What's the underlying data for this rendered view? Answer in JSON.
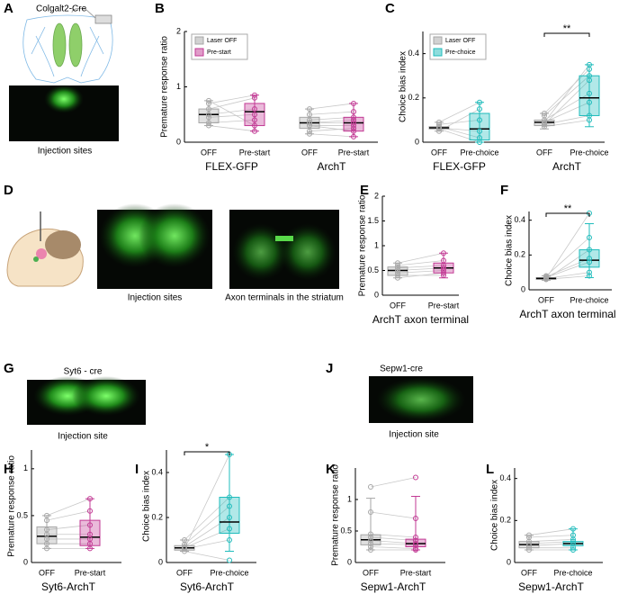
{
  "figure": {
    "panels": [
      "A",
      "B",
      "C",
      "D",
      "E",
      "F",
      "G",
      "H",
      "I",
      "J",
      "K",
      "L"
    ],
    "labels": [
      "Colgalt2-Cre",
      "Injection sites",
      "Injection sites",
      "Axon terminals in the striatum",
      "Syt6 - cre",
      "Injection site",
      "Sepw1-cre",
      "Injection site"
    ]
  },
  "chart_data": [
    {
      "type": "box",
      "ylabel": "Premature response ratio",
      "ylim": [
        0,
        2
      ],
      "yticks": [
        0,
        1,
        2
      ],
      "groups": [
        "FLEX-GFP",
        "ArchT"
      ],
      "categories": [
        "OFF",
        "Pre-start",
        "OFF",
        "Pre-start"
      ],
      "series": [
        {
          "name": "Laser OFF",
          "color": "#a6a6a6",
          "boxes": [
            {
              "min": 0.3,
              "q1": 0.35,
              "median": 0.5,
              "q3": 0.6,
              "max": 0.75,
              "points": [
                0.35,
                0.45,
                0.5,
                0.6,
                0.7,
                0.75,
                0.3
              ]
            },
            {
              "min": 0.15,
              "q1": 0.25,
              "median": 0.35,
              "q3": 0.45,
              "max": 0.6,
              "points": [
                0.2,
                0.3,
                0.35,
                0.4,
                0.5,
                0.6,
                0.15,
                0.35,
                0.3
              ]
            }
          ]
        },
        {
          "name": "Pre-start",
          "color": "#c23a94",
          "boxes": [
            {
              "min": 0.2,
              "q1": 0.3,
              "median": 0.55,
              "q3": 0.7,
              "max": 0.85,
              "points": [
                0.4,
                0.5,
                0.6,
                0.8,
                0.85,
                0.3,
                0.2
              ]
            },
            {
              "min": 0.1,
              "q1": 0.2,
              "median": 0.35,
              "q3": 0.45,
              "max": 0.7,
              "points": [
                0.25,
                0.3,
                0.4,
                0.45,
                0.55,
                0.7,
                0.1,
                0.35,
                0.2
              ]
            }
          ]
        }
      ]
    },
    {
      "type": "box",
      "ylabel": "Choice bias index",
      "ylim": [
        0,
        0.5
      ],
      "yticks": [
        0,
        0.2,
        0.4
      ],
      "groups": [
        "FLEX-GFP",
        "ArchT"
      ],
      "categories": [
        "OFF",
        "Pre-choice",
        "OFF",
        "Pre-choice"
      ],
      "significance": "**",
      "series": [
        {
          "name": "Laser OFF",
          "color": "#a6a6a6",
          "boxes": [
            {
              "min": 0.05,
              "q1": 0.06,
              "median": 0.065,
              "q3": 0.07,
              "max": 0.09,
              "points": [
                0.06,
                0.07,
                0.065,
                0.08,
                0.05,
                0.09
              ]
            },
            {
              "min": 0.06,
              "q1": 0.075,
              "median": 0.09,
              "q3": 0.1,
              "max": 0.13,
              "points": [
                0.07,
                0.08,
                0.09,
                0.1,
                0.12,
                0.13,
                0.09,
                0.08
              ]
            }
          ]
        },
        {
          "name": "Pre-choice",
          "color": "#1fbcbc",
          "boxes": [
            {
              "min": 0,
              "q1": 0.01,
              "median": 0.06,
              "q3": 0.13,
              "max": 0.18,
              "points": [
                0,
                0.02,
                0.05,
                0.1,
                0.15,
                0.18
              ]
            },
            {
              "min": 0.07,
              "q1": 0.12,
              "median": 0.2,
              "q3": 0.3,
              "max": 0.35,
              "points": [
                0.1,
                0.12,
                0.18,
                0.22,
                0.3,
                0.33,
                0.35,
                0.28
              ]
            }
          ]
        }
      ]
    },
    {
      "type": "box",
      "ylabel": "Premature response ratio",
      "ylim": [
        0,
        2
      ],
      "yticks": [
        0,
        0.5,
        1,
        1.5,
        2
      ],
      "groups": [
        "ArchT axon terminal"
      ],
      "categories": [
        "OFF",
        "Pre-start"
      ],
      "series": [
        {
          "color": "#a6a6a6",
          "boxes": [
            {
              "min": 0.35,
              "q1": 0.4,
              "median": 0.5,
              "q3": 0.57,
              "max": 0.65,
              "points": [
                0.4,
                0.45,
                0.5,
                0.55,
                0.6,
                0.65,
                0.35
              ]
            }
          ]
        },
        {
          "color": "#c23a94",
          "boxes": [
            {
              "min": 0.35,
              "q1": 0.45,
              "median": 0.55,
              "q3": 0.65,
              "max": 0.85,
              "points": [
                0.4,
                0.5,
                0.55,
                0.6,
                0.7,
                0.85,
                0.45
              ]
            }
          ]
        }
      ]
    },
    {
      "type": "box",
      "ylabel": "Choice bias index",
      "ylim": [
        0,
        0.45
      ],
      "yticks": [
        0,
        0.2,
        0.4
      ],
      "groups": [
        "ArchT axon terminal"
      ],
      "categories": [
        "OFF",
        "Pre-choice"
      ],
      "significance": "**",
      "series": [
        {
          "color": "#a6a6a6",
          "boxes": [
            {
              "min": 0.055,
              "q1": 0.06,
              "median": 0.065,
              "q3": 0.07,
              "max": 0.08,
              "points": [
                0.06,
                0.065,
                0.07,
                0.075,
                0.06,
                0.08,
                0.065
              ]
            }
          ]
        },
        {
          "color": "#1fbcbc",
          "boxes": [
            {
              "min": 0.07,
              "q1": 0.13,
              "median": 0.17,
              "q3": 0.23,
              "max": 0.38,
              "points": [
                0.08,
                0.1,
                0.16,
                0.18,
                0.23,
                0.3,
                0.44
              ]
            }
          ]
        }
      ]
    },
    {
      "type": "box",
      "ylabel": "Premature response ratio",
      "ylim": [
        0,
        1.2
      ],
      "yticks": [
        0,
        0.5,
        1
      ],
      "groups": [
        "Syt6-ArchT"
      ],
      "categories": [
        "OFF",
        "Pre-start"
      ],
      "series": [
        {
          "color": "#a6a6a6",
          "boxes": [
            {
              "min": 0.15,
              "q1": 0.2,
              "median": 0.28,
              "q3": 0.38,
              "max": 0.5,
              "points": [
                0.2,
                0.25,
                0.3,
                0.35,
                0.45,
                0.5,
                0.15
              ]
            }
          ]
        },
        {
          "color": "#c23a94",
          "boxes": [
            {
              "min": 0.15,
              "q1": 0.18,
              "median": 0.27,
              "q3": 0.45,
              "max": 0.68,
              "points": [
                0.2,
                0.25,
                0.3,
                0.4,
                0.55,
                0.68,
                0.15
              ]
            }
          ]
        }
      ]
    },
    {
      "type": "box",
      "ylabel": "Choice bias index",
      "ylim": [
        0,
        0.5
      ],
      "yticks": [
        0,
        0.2,
        0.4
      ],
      "groups": [
        "Syt6-ArchT"
      ],
      "categories": [
        "OFF",
        "Pre-choice"
      ],
      "significance": "*",
      "series": [
        {
          "color": "#a6a6a6",
          "boxes": [
            {
              "min": 0.05,
              "q1": 0.055,
              "median": 0.065,
              "q3": 0.075,
              "max": 0.1,
              "points": [
                0.05,
                0.06,
                0.065,
                0.07,
                0.08,
                0.1,
                0.06
              ]
            }
          ]
        },
        {
          "color": "#1fbcbc",
          "boxes": [
            {
              "min": 0.05,
              "q1": 0.13,
              "median": 0.18,
              "q3": 0.29,
              "max": 0.48,
              "points": [
                0.01,
                0.1,
                0.15,
                0.2,
                0.25,
                0.29,
                0.48
              ]
            }
          ]
        }
      ]
    },
    {
      "type": "box",
      "ylabel": "Premature response ratio",
      "ylim": [
        0,
        1.5
      ],
      "yticks": [
        0,
        0.5,
        1
      ],
      "groups": [
        "Sepw1-ArchT"
      ],
      "categories": [
        "OFF",
        "Pre-start"
      ],
      "series": [
        {
          "color": "#a6a6a6",
          "boxes": [
            {
              "min": 0.2,
              "q1": 0.28,
              "median": 0.36,
              "q3": 0.44,
              "max": 1.02,
              "points": [
                0.2,
                0.25,
                0.3,
                0.35,
                0.4,
                0.45,
                0.8,
                1.2
              ]
            }
          ]
        },
        {
          "color": "#c23a94",
          "boxes": [
            {
              "min": 0.2,
              "q1": 0.25,
              "median": 0.3,
              "q3": 0.37,
              "max": 1.05,
              "points": [
                0.2,
                0.22,
                0.28,
                0.3,
                0.35,
                0.4,
                0.7,
                1.35
              ]
            }
          ]
        }
      ]
    },
    {
      "type": "box",
      "ylabel": "Choice bias index",
      "ylim": [
        0,
        0.45
      ],
      "yticks": [
        0,
        0.2,
        0.4
      ],
      "groups": [
        "Sepw1-ArchT"
      ],
      "categories": [
        "OFF",
        "Pre-choice"
      ],
      "series": [
        {
          "color": "#a6a6a6",
          "boxes": [
            {
              "min": 0.06,
              "q1": 0.07,
              "median": 0.085,
              "q3": 0.1,
              "max": 0.13,
              "points": [
                0.06,
                0.07,
                0.08,
                0.09,
                0.1,
                0.12,
                0.13
              ]
            }
          ]
        },
        {
          "color": "#1fbcbc",
          "boxes": [
            {
              "min": 0.06,
              "q1": 0.08,
              "median": 0.09,
              "q3": 0.1,
              "max": 0.16,
              "points": [
                0.06,
                0.07,
                0.09,
                0.1,
                0.11,
                0.13,
                0.16
              ]
            }
          ]
        }
      ]
    }
  ]
}
